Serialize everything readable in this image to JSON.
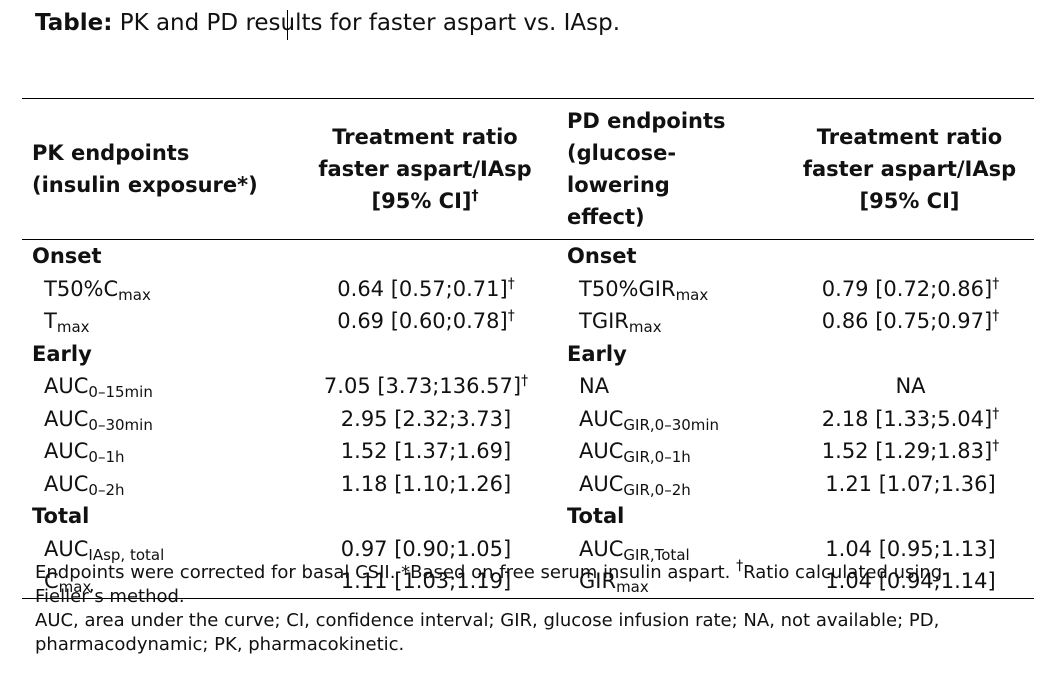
{
  "caption": {
    "label": "Table:",
    "text": " PK and PD results for faster aspart vs. IAsp."
  },
  "table": {
    "headers": {
      "pk_line1": "PK endpoints",
      "pk_line2": "(insulin exposure*)",
      "ratio_pk_line1": "Treatment ratio",
      "ratio_pk_line2": "faster aspart/IAsp",
      "ratio_pk_line3": "[95% CI]",
      "ratio_pk_dagger": "†",
      "pd_line1": "PD endpoints",
      "pd_line2": "(glucose-lowering",
      "pd_line3": "effect)",
      "ratio_pd_line1": "Treatment ratio",
      "ratio_pd_line2": "faster aspart/IAsp",
      "ratio_pd_line3": "[95% CI]"
    },
    "sections": {
      "onset": "Onset",
      "early": "Early",
      "total": "Total"
    },
    "rows": [
      {
        "pk_base": "T50%C",
        "pk_sub": "max",
        "pk_val": "0.64 [0.57;0.71]",
        "pk_dag": "†",
        "pd_base": "T50%GIR",
        "pd_sub": "max",
        "pd_val": "0.79 [0.72;0.86]",
        "pd_dag": "†"
      },
      {
        "pk_base": "T",
        "pk_sub": "max",
        "pk_val": "0.69 [0.60;0.78]",
        "pk_dag": "†",
        "pd_base": "TGIR",
        "pd_sub": "max",
        "pd_val": "0.86 [0.75;0.97]",
        "pd_dag": "†"
      },
      {
        "pk_base": "AUC",
        "pk_sub": "0–15min",
        "pk_val": "7.05 [3.73;136.57]",
        "pk_dag": "†",
        "pd_base": "NA",
        "pd_sub": "",
        "pd_val": "NA",
        "pd_dag": ""
      },
      {
        "pk_base": "AUC",
        "pk_sub": "0–30min",
        "pk_val": "2.95 [2.32;3.73]",
        "pk_dag": "",
        "pd_base": "AUC",
        "pd_sub": "GIR,0–30min",
        "pd_val": "2.18 [1.33;5.04]",
        "pd_dag": "†"
      },
      {
        "pk_base": "AUC",
        "pk_sub": "0–1h",
        "pk_val": "1.52 [1.37;1.69]",
        "pk_dag": "",
        "pd_base": "AUC",
        "pd_sub": "GIR,0–1h",
        "pd_val": "1.52 [1.29;1.83]",
        "pd_dag": "†"
      },
      {
        "pk_base": "AUC",
        "pk_sub": "0–2h",
        "pk_val": "1.18 [1.10;1.26]",
        "pk_dag": "",
        "pd_base": "AUC",
        "pd_sub": "GIR,0–2h",
        "pd_val": "1.21 [1.07;1.36]",
        "pd_dag": ""
      },
      {
        "pk_base": "AUC",
        "pk_sub": "IAsp, total",
        "pk_val": "0.97 [0.90;1.05]",
        "pk_dag": "",
        "pd_base": "AUC",
        "pd_sub": "GIR,Total",
        "pd_val": "1.04 [0.95;1.13]",
        "pd_dag": ""
      },
      {
        "pk_base": "C",
        "pk_sub": "max",
        "pk_val": "1.11 [1.03;1.19]",
        "pk_dag": "",
        "pd_base": "GIR",
        "pd_sub": "max",
        "pd_val": "1.04 [0.94;1.14]",
        "pd_dag": ""
      }
    ]
  },
  "notes": {
    "line1_a": "Endpoints were corrected for basal CSII. *Based on free serum insulin aspart. ",
    "line1_dagger": "†",
    "line1_b": "Ratio calculated using Fieller’s method.",
    "line2": "AUC, area under the curve; CI, confidence interval; GIR, glucose infusion rate; NA, not available; PD, pharmacodynamic; PK, pharmacokinetic."
  }
}
